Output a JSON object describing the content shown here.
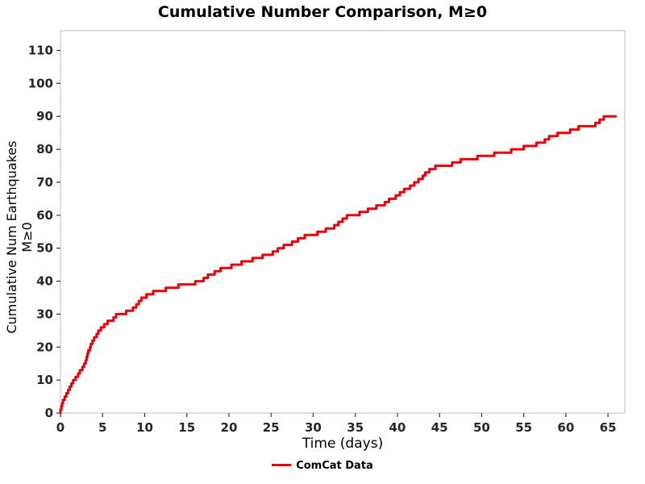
{
  "chart_data": {
    "type": "line",
    "title": "Cumulative Number Comparison, M≥0",
    "xlabel": "Time (days)",
    "ylabel": "Cumulative Num Earthquakes M≥0",
    "legend": [
      {
        "label": "ComCat Data",
        "color": "#e8000b"
      }
    ],
    "step": true,
    "grid": false,
    "legend_position": "bottom-center",
    "line_color": "#e8000b",
    "line_width": 3,
    "axis_border_color": "#bdbdbd",
    "tick_color": "#333333",
    "tick_label_color": "#262626",
    "xlim": [
      0,
      67
    ],
    "ylim": [
      0,
      116
    ],
    "x_end": 65.9,
    "xticks": [
      0,
      5,
      10,
      15,
      20,
      25,
      30,
      35,
      40,
      45,
      50,
      55,
      60,
      65
    ],
    "yticks": [
      0,
      10,
      20,
      30,
      40,
      50,
      60,
      70,
      80,
      90,
      100,
      110
    ],
    "x": [
      0.0,
      0.1,
      0.2,
      0.3,
      0.5,
      0.7,
      0.9,
      1.1,
      1.3,
      1.5,
      1.8,
      2.1,
      2.3,
      2.6,
      2.8,
      3.0,
      3.1,
      3.2,
      3.3,
      3.5,
      3.6,
      3.8,
      4.0,
      4.3,
      4.5,
      4.8,
      5.2,
      5.6,
      6.3,
      6.6,
      7.8,
      8.6,
      9.0,
      9.3,
      9.6,
      10.2,
      11.0,
      12.5,
      14.0,
      16.0,
      17.0,
      17.5,
      18.3,
      19.0,
      20.3,
      21.5,
      22.8,
      24.0,
      25.2,
      25.8,
      26.5,
      27.5,
      28.2,
      29.0,
      30.5,
      31.5,
      32.5,
      33.0,
      33.5,
      34.0,
      35.5,
      36.5,
      37.5,
      38.5,
      39.0,
      39.8,
      40.3,
      40.8,
      41.5,
      42.0,
      42.5,
      43.0,
      43.3,
      43.8,
      44.5,
      46.5,
      47.5,
      49.5,
      51.5,
      53.5,
      55.0,
      56.5,
      57.5,
      58.0,
      59.0,
      60.5,
      61.5,
      63.5,
      64.0,
      64.5
    ],
    "y": [
      1,
      2,
      3,
      4,
      5,
      6,
      7,
      8,
      9,
      10,
      11,
      12,
      13,
      14,
      15,
      16,
      17,
      18,
      19,
      20,
      21,
      22,
      23,
      24,
      25,
      26,
      27,
      28,
      29,
      30,
      31,
      32,
      33,
      34,
      35,
      36,
      37,
      38,
      39,
      40,
      41,
      42,
      43,
      44,
      45,
      46,
      47,
      48,
      49,
      50,
      51,
      52,
      53,
      54,
      55,
      56,
      57,
      58,
      59,
      60,
      61,
      62,
      63,
      64,
      65,
      66,
      67,
      68,
      69,
      70,
      71,
      72,
      73,
      74,
      75,
      76,
      77,
      78,
      79,
      80,
      81,
      82,
      83,
      84,
      85,
      86,
      87,
      88,
      89,
      90
    ]
  }
}
